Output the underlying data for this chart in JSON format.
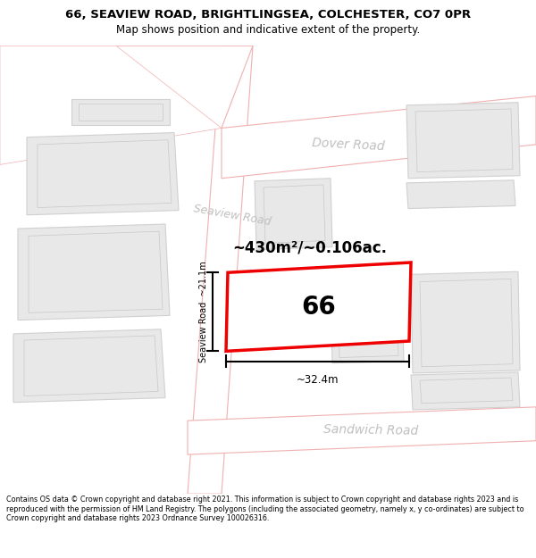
{
  "title_line1": "66, SEAVIEW ROAD, BRIGHTLINGSEA, COLCHESTER, CO7 0PR",
  "title_line2": "Map shows position and indicative extent of the property.",
  "footer_text": "Contains OS data © Crown copyright and database right 2021. This information is subject to Crown copyright and database rights 2023 and is reproduced with the permission of HM Land Registry. The polygons (including the associated geometry, namely x, y co-ordinates) are subject to Crown copyright and database rights 2023 Ordnance Survey 100026316.",
  "map_bg": "#f8f8f8",
  "road_fill": "#ffffff",
  "road_outline": "#f0b0b0",
  "building_fill": "#e8e8e8",
  "building_outline": "#d0d0d0",
  "highlight_fill": "#ffffff",
  "highlight_outline": "#ee0000",
  "road_label_color": "#c0c0c0",
  "area_label": "~430m²/~0.106ac.",
  "number_label": "66",
  "dim_width": "~32.4m",
  "dim_height": "~21.1m",
  "road_label_seaview": "Seaview Road",
  "road_label_dover": "Dover Road",
  "road_label_sandwich": "Sandwich Road",
  "title_fontsize": 9.5,
  "subtitle_fontsize": 8.5
}
